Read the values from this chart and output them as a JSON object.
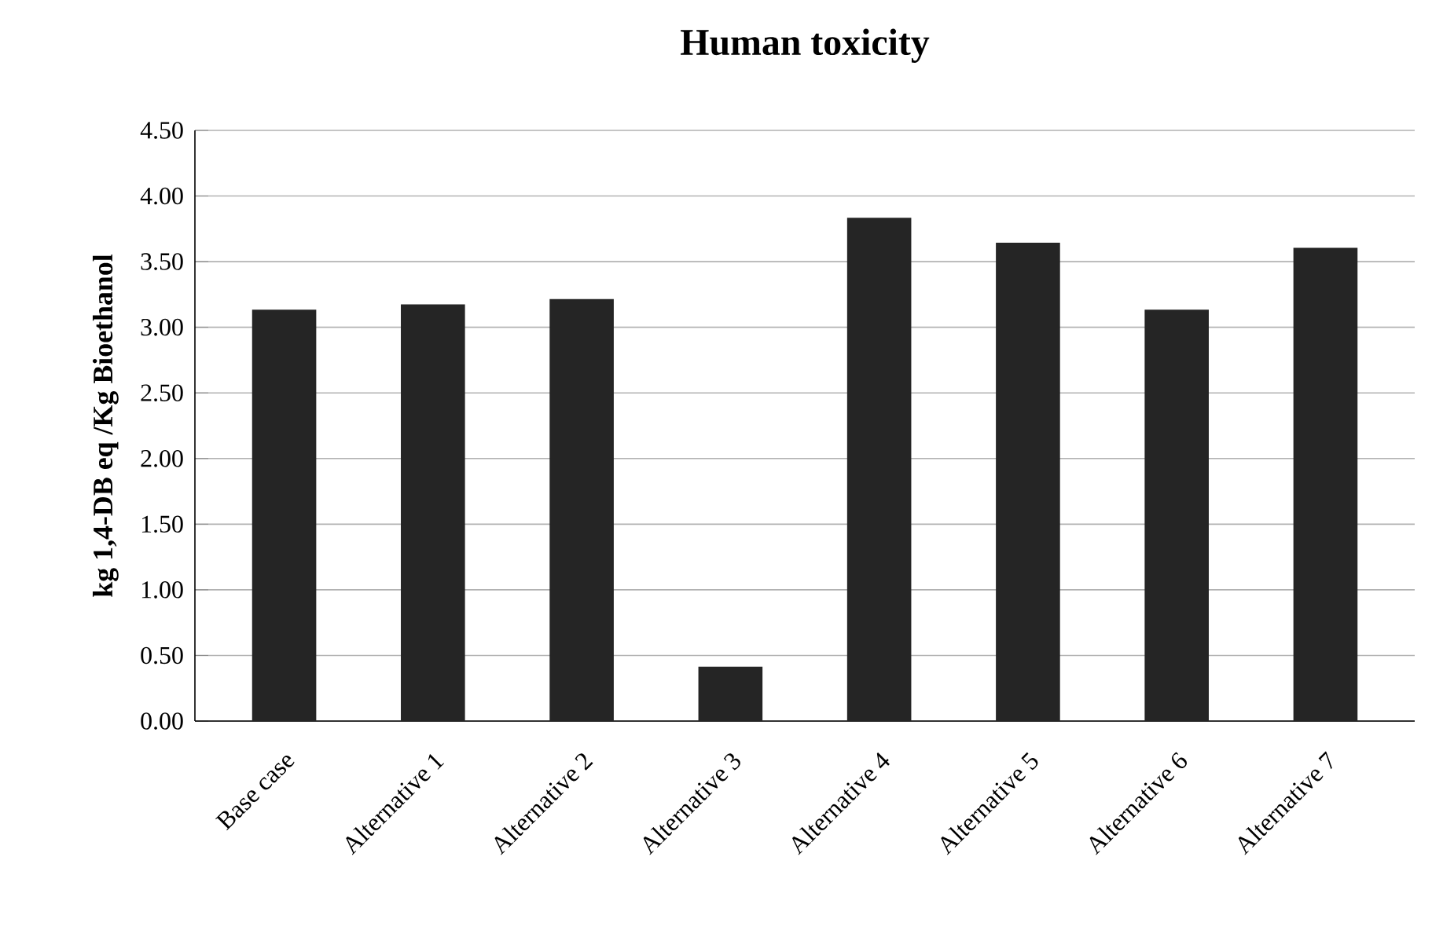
{
  "chart_data": {
    "type": "bar",
    "title": "Human toxicity",
    "ylabel": "kg 1,4-DB eq /Kg Bioethanol",
    "categories": [
      "Base case",
      "Alternative 1",
      "Alternative 2",
      "Alternative 3",
      "Alternative 4",
      "Alternative 5",
      "Alternative 6",
      "Alternative 7"
    ],
    "values": [
      3.13,
      3.17,
      3.21,
      0.41,
      3.83,
      3.64,
      3.13,
      3.6
    ],
    "color": "#252525",
    "ylim": [
      0,
      4.5
    ],
    "yticks": [
      {
        "value": 0,
        "label": "0.00"
      },
      {
        "value": 0.5,
        "label": "0.50"
      },
      {
        "value": 1,
        "label": "1.00"
      },
      {
        "value": 1.5,
        "label": "1.50"
      },
      {
        "value": 2,
        "label": "2.00"
      },
      {
        "value": 2.5,
        "label": "2.50"
      },
      {
        "value": 3,
        "label": "3.00"
      },
      {
        "value": 3.5,
        "label": "3.50"
      },
      {
        "value": 4,
        "label": "4.00"
      },
      {
        "value": 4.5,
        "label": "4.50"
      }
    ],
    "grid": "y"
  }
}
